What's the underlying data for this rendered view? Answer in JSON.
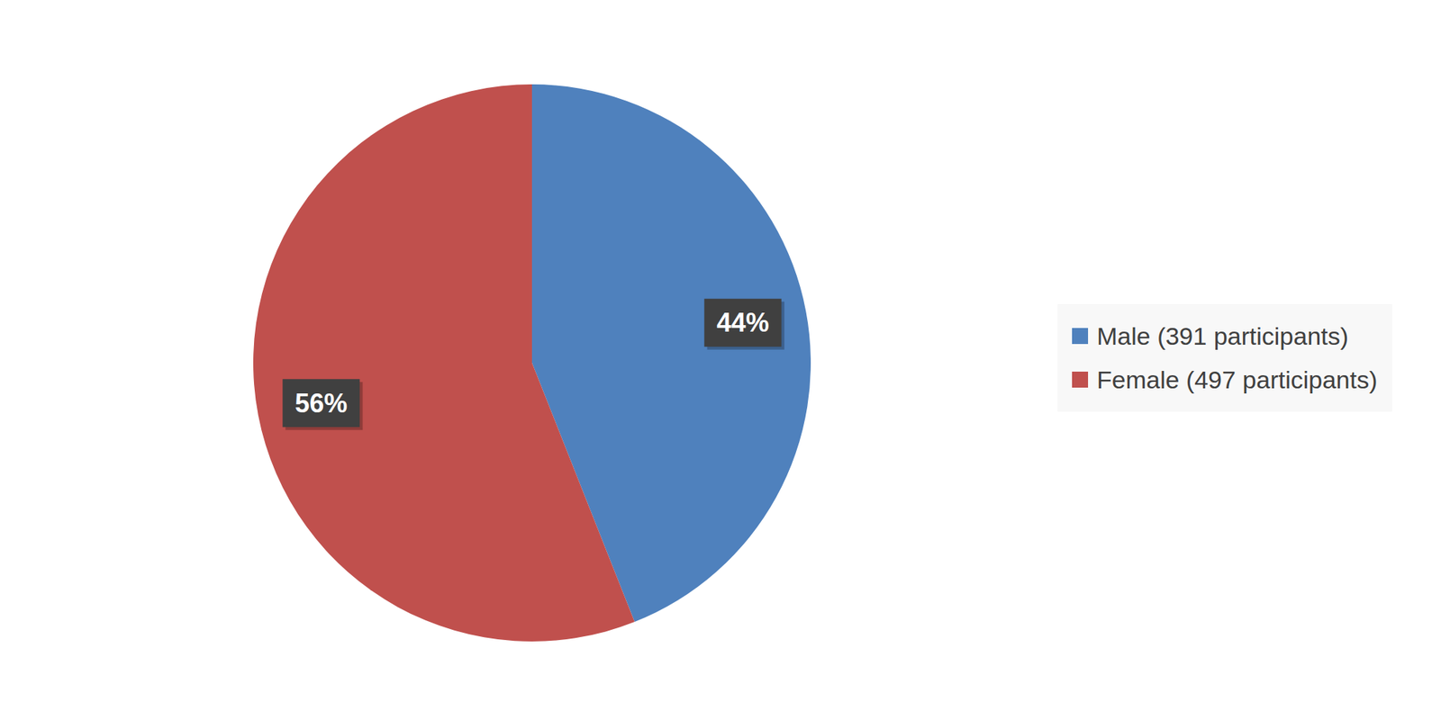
{
  "chart_data": {
    "type": "pie",
    "categories": [
      "Male (391 participants)",
      "Female (497 participants)"
    ],
    "values": [
      44,
      56
    ],
    "value_labels": [
      "44%",
      "56%"
    ],
    "colors": [
      "#4f81bd",
      "#c0504d"
    ],
    "data_labels": true,
    "legend": "right"
  }
}
